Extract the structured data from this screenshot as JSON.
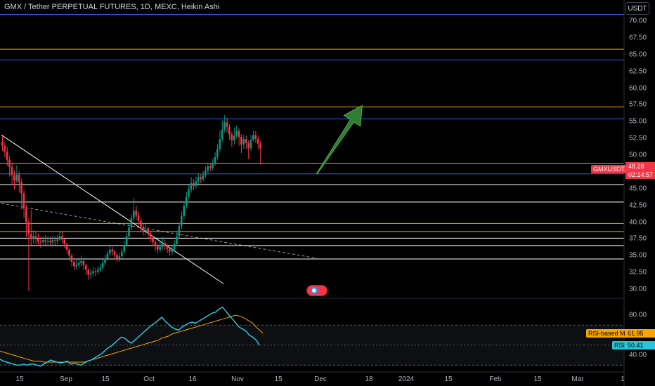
{
  "header": {
    "title": "GMX / Tether PERPETUAL FUTURES, 1D, MEXC, Heikin Ashi",
    "currency_button": "USDT"
  },
  "price_axis": {
    "ticks": [
      "70.00",
      "67.50",
      "65.00",
      "62.50",
      "60.00",
      "57.50",
      "55.00",
      "52.50",
      "50.00",
      "47.50",
      "45.00",
      "42.50",
      "40.00",
      "37.50",
      "35.00",
      "32.50",
      "30.00"
    ]
  },
  "rsi_axis": {
    "ticks": [
      "80.00",
      "40.00"
    ]
  },
  "time_axis": {
    "ticks": [
      "15",
      "Sep",
      "15",
      "Oct",
      "16",
      "Nov",
      "15",
      "Dec",
      "18",
      "2024",
      "15",
      "Feb",
      "15",
      "Mar",
      "1"
    ]
  },
  "labels": {
    "symbol": "GMXUSDT.P",
    "last_price": "48.28",
    "countdown": "02:14:57",
    "rsi_ma_label": "RSI-based MA",
    "rsi_ma_value": "61.95",
    "rsi_label": "RSI",
    "rsi_value": "50.41"
  },
  "colors": {
    "background": "#000000",
    "up_candle": "#089981",
    "down_candle": "#f23645",
    "horizontal_orange": "#f7a600",
    "horizontal_blue": "#2962ff",
    "horizontal_white": "#ffffff",
    "arrow": "#2e7d32",
    "rsi_line": "#26c6da",
    "rsi_ma_line": "#f7a600"
  },
  "chart_data": {
    "type": "candlestick",
    "style": "Heikin Ashi",
    "symbol": "GMXUSDT.P",
    "exchange": "MEXC",
    "interval": "1D",
    "ylim": [
      29.0,
      71.5
    ],
    "horizontal_levels": [
      {
        "price": 71.0,
        "color": "blue"
      },
      {
        "price": 65.8,
        "color": "orange"
      },
      {
        "price": 64.2,
        "color": "blue"
      },
      {
        "price": 57.2,
        "color": "orange"
      },
      {
        "price": 55.4,
        "color": "blue"
      },
      {
        "price": 48.8,
        "color": "orange"
      },
      {
        "price": 47.2,
        "color": "blue"
      },
      {
        "price": 45.6,
        "color": "white"
      },
      {
        "price": 43.0,
        "color": "white"
      },
      {
        "price": 39.8,
        "color": "orange"
      },
      {
        "price": 38.6,
        "color": "orange"
      },
      {
        "price": 37.6,
        "color": "white"
      },
      {
        "price": 36.5,
        "color": "white"
      },
      {
        "price": 34.5,
        "color": "white"
      }
    ],
    "candles": [
      [
        52.0,
        51.4,
        52.8,
        50.6
      ],
      [
        51.4,
        50.5,
        51.9,
        49.7
      ],
      [
        50.5,
        49.3,
        51.2,
        48.4
      ],
      [
        49.3,
        48.2,
        49.9,
        46.8
      ],
      [
        48.2,
        47.0,
        48.9,
        45.5
      ],
      [
        47.0,
        46.2,
        47.7,
        44.9
      ],
      [
        46.2,
        47.1,
        48.5,
        45.8
      ],
      [
        47.1,
        46.0,
        47.6,
        44.4
      ],
      [
        46.0,
        44.3,
        46.5,
        41.9
      ],
      [
        44.3,
        42.0,
        44.8,
        40.6
      ],
      [
        42.0,
        40.0,
        42.6,
        37.8
      ],
      [
        40.0,
        38.2,
        40.6,
        29.8
      ],
      [
        38.2,
        37.5,
        41.8,
        36.6
      ],
      [
        37.5,
        37.9,
        38.8,
        36.8
      ],
      [
        37.9,
        37.6,
        38.6,
        36.7
      ],
      [
        37.6,
        37.1,
        38.3,
        36.4
      ],
      [
        37.1,
        37.0,
        37.8,
        36.2
      ],
      [
        37.0,
        37.3,
        37.9,
        36.4
      ],
      [
        37.3,
        37.1,
        38.1,
        36.6
      ],
      [
        37.1,
        37.2,
        37.9,
        36.5
      ],
      [
        37.2,
        37.0,
        37.8,
        36.4
      ],
      [
        37.0,
        37.3,
        38.0,
        36.6
      ],
      [
        37.3,
        37.2,
        37.9,
        36.6
      ],
      [
        37.2,
        37.4,
        38.1,
        36.7
      ],
      [
        37.4,
        37.9,
        38.6,
        37.1
      ],
      [
        37.9,
        37.4,
        38.5,
        36.9
      ],
      [
        37.4,
        36.7,
        37.6,
        36.1
      ],
      [
        36.7,
        35.9,
        36.9,
        35.3
      ],
      [
        35.9,
        35.0,
        36.1,
        34.3
      ],
      [
        35.0,
        34.1,
        35.3,
        33.4
      ],
      [
        34.1,
        33.4,
        34.3,
        32.8
      ],
      [
        33.4,
        33.6,
        34.4,
        32.9
      ],
      [
        33.6,
        33.9,
        34.7,
        33.1
      ],
      [
        33.9,
        34.2,
        35.0,
        33.4
      ],
      [
        34.2,
        33.6,
        34.5,
        32.9
      ],
      [
        33.6,
        32.9,
        33.8,
        32.1
      ],
      [
        32.9,
        32.2,
        33.1,
        31.4
      ],
      [
        32.2,
        32.4,
        33.0,
        31.6
      ],
      [
        32.4,
        32.7,
        33.3,
        31.9
      ],
      [
        32.7,
        32.6,
        33.2,
        32.0
      ],
      [
        32.6,
        32.9,
        33.4,
        32.2
      ],
      [
        32.9,
        33.2,
        33.8,
        32.6
      ],
      [
        33.2,
        33.9,
        34.4,
        32.8
      ],
      [
        33.9,
        34.6,
        35.1,
        33.5
      ],
      [
        34.6,
        35.3,
        35.8,
        34.2
      ],
      [
        35.3,
        35.9,
        36.4,
        34.9
      ],
      [
        35.9,
        35.6,
        36.3,
        35.0
      ],
      [
        35.6,
        35.1,
        35.9,
        34.5
      ],
      [
        35.1,
        34.6,
        35.4,
        34.0
      ],
      [
        34.6,
        34.9,
        35.4,
        34.1
      ],
      [
        34.9,
        35.6,
        36.1,
        34.5
      ],
      [
        35.6,
        36.6,
        37.2,
        35.3
      ],
      [
        36.6,
        37.9,
        38.4,
        36.3
      ],
      [
        37.9,
        39.2,
        39.8,
        37.5
      ],
      [
        39.2,
        40.6,
        41.2,
        38.8
      ],
      [
        40.6,
        41.7,
        43.6,
        40.2
      ],
      [
        41.7,
        41.0,
        42.4,
        40.3
      ],
      [
        41.0,
        40.2,
        41.6,
        39.5
      ],
      [
        40.2,
        39.3,
        40.6,
        38.5
      ],
      [
        39.3,
        38.7,
        39.8,
        38.0
      ],
      [
        38.7,
        38.9,
        39.8,
        38.1
      ],
      [
        38.9,
        38.3,
        39.3,
        37.6
      ],
      [
        38.3,
        37.6,
        38.6,
        37.0
      ],
      [
        37.6,
        37.0,
        37.9,
        36.4
      ],
      [
        37.0,
        36.4,
        37.3,
        35.7
      ],
      [
        36.4,
        35.9,
        36.7,
        35.3
      ],
      [
        35.9,
        36.3,
        37.1,
        35.5
      ],
      [
        36.3,
        36.9,
        37.8,
        35.9
      ],
      [
        36.9,
        36.5,
        37.4,
        35.8
      ],
      [
        36.5,
        36.0,
        36.8,
        35.4
      ],
      [
        36.0,
        35.6,
        36.3,
        35.0
      ],
      [
        35.6,
        35.9,
        36.5,
        35.1
      ],
      [
        35.9,
        36.7,
        37.3,
        35.6
      ],
      [
        36.7,
        37.9,
        38.5,
        36.4
      ],
      [
        37.9,
        39.4,
        39.9,
        37.6
      ],
      [
        39.4,
        40.9,
        41.6,
        39.0
      ],
      [
        40.9,
        42.4,
        43.1,
        40.5
      ],
      [
        42.4,
        43.8,
        44.5,
        42.0
      ],
      [
        43.8,
        44.9,
        45.6,
        43.4
      ],
      [
        44.9,
        45.8,
        46.7,
        44.4
      ],
      [
        45.8,
        45.4,
        46.4,
        44.8
      ],
      [
        45.4,
        46.1,
        46.8,
        45.0
      ],
      [
        46.1,
        46.7,
        47.3,
        45.7
      ],
      [
        46.7,
        46.4,
        47.2,
        45.8
      ],
      [
        46.4,
        47.0,
        47.6,
        46.0
      ],
      [
        47.0,
        47.7,
        48.3,
        46.6
      ],
      [
        47.7,
        48.3,
        48.9,
        47.3
      ],
      [
        48.3,
        48.1,
        48.8,
        47.6
      ],
      [
        48.1,
        48.8,
        49.4,
        47.7
      ],
      [
        48.8,
        49.7,
        50.4,
        48.4
      ],
      [
        49.7,
        50.9,
        51.6,
        49.3
      ],
      [
        50.9,
        52.4,
        53.6,
        50.5
      ],
      [
        52.4,
        53.8,
        55.2,
        52.0
      ],
      [
        53.8,
        54.9,
        56.0,
        53.4
      ],
      [
        54.9,
        54.2,
        55.6,
        53.4
      ],
      [
        54.2,
        53.1,
        54.6,
        52.3
      ],
      [
        53.1,
        52.2,
        53.5,
        51.2
      ],
      [
        52.2,
        52.9,
        54.1,
        51.6
      ],
      [
        52.9,
        53.6,
        54.4,
        52.5
      ],
      [
        53.6,
        52.7,
        54.0,
        51.4
      ],
      [
        52.7,
        51.6,
        53.1,
        50.3
      ],
      [
        51.6,
        52.4,
        53.0,
        50.9
      ],
      [
        52.4,
        51.8,
        52.9,
        50.9
      ],
      [
        51.8,
        51.0,
        52.2,
        49.4
      ],
      [
        51.0,
        52.3,
        53.0,
        50.6
      ],
      [
        52.3,
        53.0,
        53.7,
        52.0
      ],
      [
        53.0,
        52.4,
        53.6,
        51.8
      ],
      [
        52.4,
        51.7,
        52.9,
        50.8
      ],
      [
        51.7,
        51.0,
        52.1,
        48.6
      ]
    ],
    "trendlines": [
      {
        "style": "solid",
        "from": [
          0,
          53.0
        ],
        "to": [
          93,
          30.8
        ],
        "color": "white"
      },
      {
        "style": "dashed",
        "from": [
          0,
          42.8
        ],
        "to": [
          132,
          34.6
        ],
        "color": "white"
      }
    ],
    "annotation_arrow": {
      "from": [
        132,
        47.2
      ],
      "to": [
        151,
        57.4
      ],
      "direction": "up-right"
    },
    "rsi": {
      "ylim": [
        27,
        92
      ],
      "levels": [
        70,
        50,
        30
      ],
      "rsi_values": [
        36,
        34,
        33,
        32,
        31,
        30,
        30,
        31,
        30,
        31,
        31,
        30,
        29,
        31,
        33,
        35,
        34,
        33,
        32,
        33,
        34,
        31,
        32,
        31,
        30,
        32,
        34,
        35,
        37,
        39,
        41,
        44,
        47,
        49,
        52,
        55,
        58,
        57,
        54,
        52,
        55,
        58,
        61,
        64,
        67,
        70,
        72,
        75,
        78,
        74,
        71,
        68,
        66,
        65,
        68,
        70,
        72,
        73,
        72,
        74,
        76,
        78,
        80,
        82,
        83,
        86,
        88,
        84,
        80,
        76,
        72,
        68,
        66,
        64,
        60,
        58,
        55,
        50
      ],
      "rsi_ma_values": [
        44,
        43,
        42,
        41,
        40,
        39,
        38,
        37,
        36,
        35,
        34,
        34,
        34,
        33,
        33,
        33,
        33,
        33,
        33,
        33,
        33,
        33,
        33,
        33,
        33,
        33,
        34,
        35,
        36,
        37,
        38,
        39,
        40,
        41,
        42,
        43,
        44,
        45,
        46,
        47,
        48,
        49,
        50,
        51,
        52,
        53,
        54,
        55,
        57,
        58,
        59,
        61,
        62,
        63,
        64,
        65,
        66,
        67,
        68,
        69,
        70,
        71,
        72,
        73,
        74,
        75,
        76,
        77,
        78,
        79,
        80,
        79,
        78,
        76,
        74,
        72,
        68,
        65,
        62
      ]
    }
  }
}
